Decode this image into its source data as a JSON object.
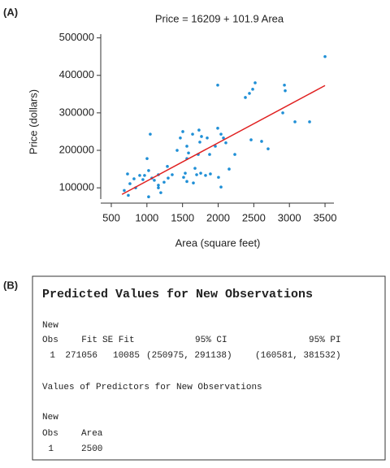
{
  "panel_a_label": "(A)",
  "chart_data": {
    "type": "scatter",
    "title": "Price = 16209 + 101.9 Area",
    "x_label": "Area (square feet)",
    "y_label": "Price (dollars)",
    "xlim": [
      352,
      3625
    ],
    "ylim": [
      70000,
      510000
    ],
    "xticks": [
      500,
      1000,
      1500,
      2000,
      2500,
      3000,
      3500
    ],
    "yticks": [
      100000,
      200000,
      300000,
      400000,
      500000
    ],
    "color": "#1f8fd6",
    "fit_color": "#e02020",
    "x": [
      3500,
      1994,
      2519,
      2485,
      2439,
      2382,
      2930,
      2941,
      2907,
      3078,
      3283,
      2462,
      2610,
      2701,
      2234,
      1994,
      2040,
      2074,
      2108,
      1960,
      1731,
      1766,
      1743,
      1641,
      1504,
      1469,
      1424,
      1561,
      1584,
      1720,
      1846,
      1880,
      1047,
      1002,
      1561,
      1287,
      1355,
      1538,
      1675,
      1755,
      1823,
      1891,
      2005,
      2154,
      2040,
      1652,
      1561,
      1515,
      1698,
      1161,
      1070,
      1104,
      1024,
      944,
      967,
      899,
      819,
      842,
      1298,
      1241,
      1161,
      1195,
      1024,
      762,
      728,
      682,
      739,
      1161
    ],
    "values": [
      450000,
      374000,
      380000,
      363000,
      352000,
      341000,
      374000,
      359000,
      300000,
      276000,
      276000,
      228000,
      224000,
      204000,
      189000,
      259000,
      243000,
      233000,
      220000,
      211000,
      254000,
      237000,
      222000,
      243000,
      250000,
      233000,
      200000,
      211000,
      193000,
      189000,
      233000,
      189000,
      243000,
      178000,
      178000,
      157000,
      135000,
      139000,
      152000,
      139000,
      133000,
      137000,
      128000,
      150000,
      102000,
      113000,
      117000,
      128000,
      135000,
      135000,
      126000,
      120000,
      146000,
      122000,
      133000,
      133000,
      124000,
      100000,
      126000,
      115000,
      107000,
      87000,
      76000,
      111000,
      137000,
      93000,
      80000,
      100000
    ],
    "fit": {
      "x": [
        650,
        3500
      ],
      "y": [
        82444,
        372859
      ]
    }
  },
  "panel_b": {
    "label": "(B)",
    "title": "Predicted Values for New Observations",
    "table1": {
      "group": "New",
      "headers": [
        "Obs",
        "Fit",
        "SE Fit",
        "95% CI",
        "95% PI"
      ],
      "row": [
        "1",
        "271056",
        "10085",
        "(250975, 291138)",
        "(160581, 381532)"
      ]
    },
    "subtitle": "Values of Predictors for New Observations",
    "table2": {
      "group": "New",
      "headers": [
        "Obs",
        "Area"
      ],
      "row": [
        "1",
        "2500"
      ]
    }
  }
}
